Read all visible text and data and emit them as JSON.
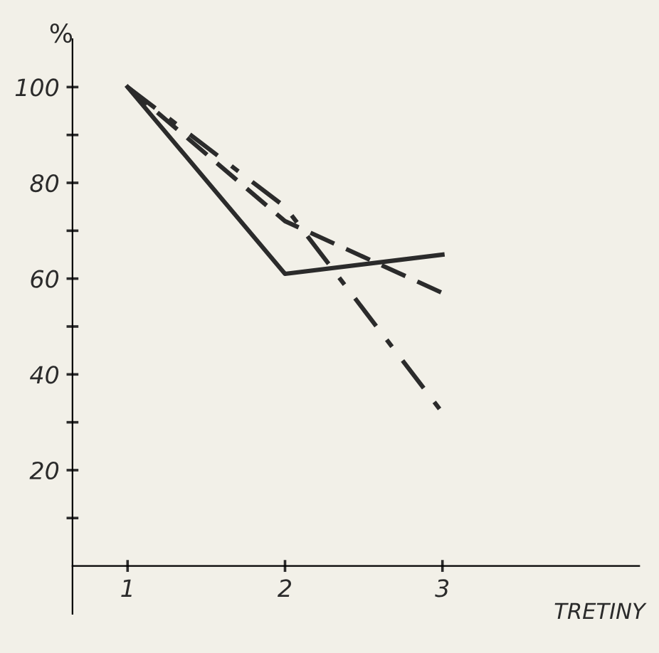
{
  "chart_data": {
    "type": "line",
    "xlabel": "TRETINY",
    "ylabel": "%",
    "x": [
      1,
      2,
      3
    ],
    "series": [
      {
        "color": "#2b2b2b",
        "values": [
          100,
          61,
          65
        ],
        "line_style": "solid"
      },
      {
        "color": "#2b2b2b",
        "values": [
          100,
          72,
          57
        ],
        "line_style": "dashed"
      },
      {
        "color": "#2b2b2b",
        "values": [
          100,
          75,
          32
        ],
        "line_style": "dashdot"
      }
    ],
    "xlim": [
      0.65,
      4.25
    ],
    "xticks": [
      1,
      2,
      3
    ],
    "ylim": [
      -10,
      110
    ],
    "yticks": [
      {
        "value": 10,
        "label": null
      },
      20,
      {
        "value": 30,
        "label": null
      },
      40,
      {
        "value": 50,
        "label": null
      },
      60,
      {
        "value": 70,
        "label": null
      },
      80,
      {
        "value": 90,
        "label": null
      },
      100
    ],
    "grid": false,
    "legend": false,
    "marker": "none"
  }
}
